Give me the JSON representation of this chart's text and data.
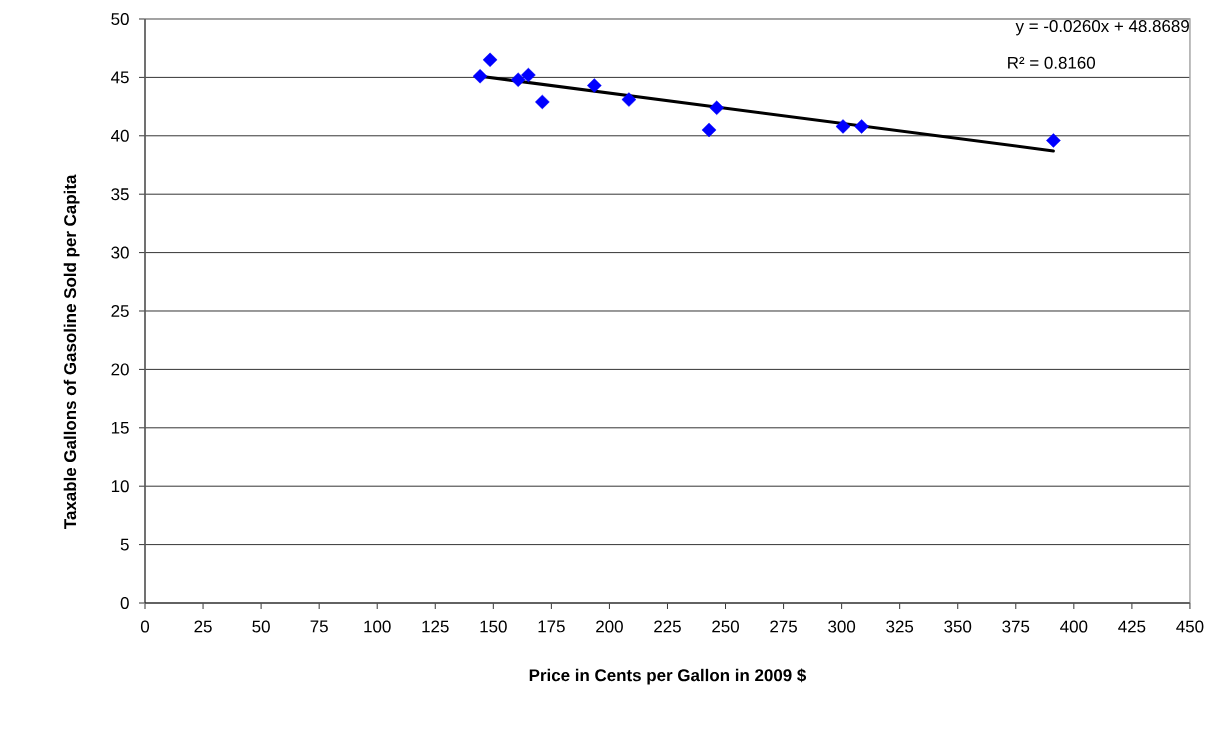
{
  "chart_data": {
    "type": "scatter",
    "xlabel": "Price in Cents per Gallon in 2009 $",
    "ylabel": "Taxable Gallons of Gasoline Sold per Capita",
    "xlim": [
      0,
      450
    ],
    "xticks": [
      0,
      25,
      50,
      75,
      100,
      125,
      150,
      175,
      200,
      225,
      250,
      275,
      300,
      325,
      350,
      375,
      400,
      425,
      450
    ],
    "ylim": [
      0,
      50
    ],
    "yticks": [
      0,
      5,
      10,
      15,
      20,
      25,
      30,
      35,
      40,
      45,
      50
    ],
    "grid": "y",
    "marker": "diamond",
    "series": [
      {
        "color": "#0000ff",
        "x": [
          144.3,
          148.6,
          160.7,
          165.1,
          171.1,
          193.5,
          208.4,
          242.9,
          246.2,
          300.6,
          308.6,
          391.2
        ],
        "values": [
          45.1,
          46.5,
          44.8,
          45.2,
          42.9,
          44.3,
          43.1,
          40.5,
          42.4,
          40.8,
          40.8,
          39.6
        ]
      },
      {
        "type": "line",
        "marker": "none",
        "color": "#000000",
        "x": [
          144.3,
          391.2
        ],
        "values": [
          45.1,
          38.7
        ]
      }
    ],
    "annotations": [
      "y = -0.0260x + 48.8689",
      "R² = 0.8160"
    ]
  }
}
